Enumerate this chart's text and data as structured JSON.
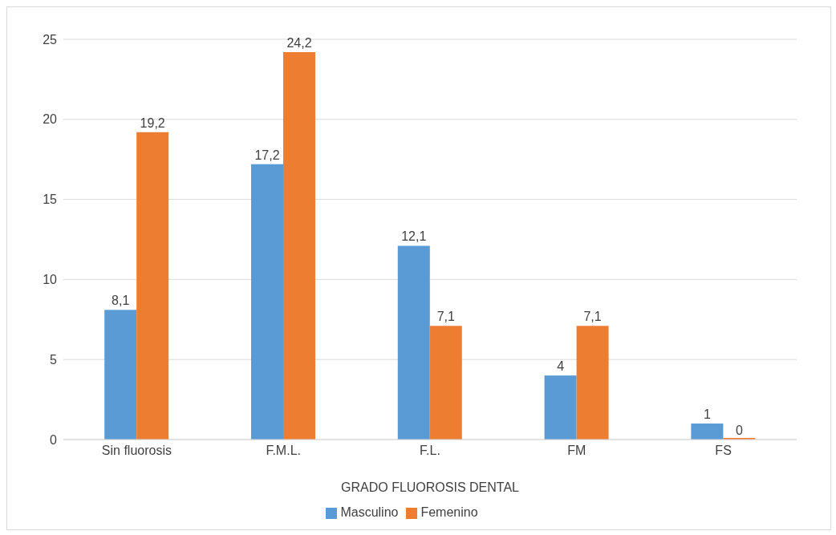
{
  "chart_data": {
    "type": "bar",
    "xlabel": "GRADO FLUOROSIS DENTAL",
    "categories": [
      "Sin fluorosis",
      "F.M.L.",
      "F.L.",
      "FM",
      "FS"
    ],
    "series": [
      {
        "name": "Masculino",
        "color": "#5b9bd5",
        "values": [
          8.1,
          17.2,
          12.1,
          4,
          1
        ],
        "value_labels": [
          "8,1",
          "17,2",
          "12,1",
          "4",
          "1"
        ]
      },
      {
        "name": "Femenino",
        "color": "#ed7d31",
        "values": [
          19.2,
          24.2,
          7.1,
          7.1,
          0
        ],
        "value_labels": [
          "19,2",
          "24,2",
          "7,1",
          "7,1",
          "0"
        ]
      }
    ],
    "ylim": [
      0,
      25
    ],
    "yticks": [
      0,
      5,
      10,
      15,
      20,
      25
    ],
    "grid": "y",
    "legend": "bottom"
  }
}
